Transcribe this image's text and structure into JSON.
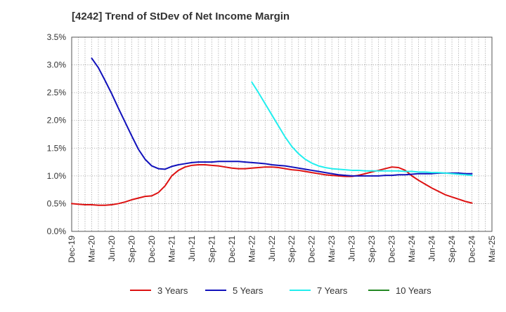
{
  "chart_data": {
    "type": "line",
    "title": "[4242]  Trend of StDev of Net Income Margin",
    "xlabel": "",
    "ylabel": "",
    "x_ticks": [
      "Dec-19",
      "Mar-20",
      "Jun-20",
      "Sep-20",
      "Dec-20",
      "Mar-21",
      "Jun-21",
      "Sep-21",
      "Dec-21",
      "Mar-22",
      "Jun-22",
      "Sep-22",
      "Dec-22",
      "Mar-23",
      "Jun-23",
      "Sep-23",
      "Dec-23",
      "Mar-24",
      "Jun-24",
      "Sep-24",
      "Dec-24",
      "Mar-25"
    ],
    "y_ticks": [
      "0.0%",
      "0.5%",
      "1.0%",
      "1.5%",
      "2.0%",
      "2.5%",
      "3.0%",
      "3.5%"
    ],
    "ylim": [
      0,
      3.5
    ],
    "y_unit": "%",
    "grid": true,
    "legend_position": "bottom",
    "series": [
      {
        "name": "3 Years",
        "color": "#dd1111",
        "x": [
          "Dec-19",
          "Jan-20",
          "Feb-20",
          "Mar-20",
          "Apr-20",
          "May-20",
          "Jun-20",
          "Jul-20",
          "Aug-20",
          "Sep-20",
          "Oct-20",
          "Nov-20",
          "Dec-20",
          "Jan-21",
          "Feb-21",
          "Mar-21",
          "Apr-21",
          "May-21",
          "Jun-21",
          "Jul-21",
          "Aug-21",
          "Sep-21",
          "Oct-21",
          "Nov-21",
          "Dec-21",
          "Jan-22",
          "Feb-22",
          "Mar-22",
          "Apr-22",
          "May-22",
          "Jun-22",
          "Jul-22",
          "Aug-22",
          "Sep-22",
          "Oct-22",
          "Nov-22",
          "Dec-22",
          "Jan-23",
          "Feb-23",
          "Mar-23",
          "Apr-23",
          "May-23",
          "Jun-23",
          "Jul-23",
          "Aug-23",
          "Sep-23",
          "Oct-23",
          "Nov-23",
          "Dec-23",
          "Jan-24",
          "Feb-24",
          "Mar-24",
          "Apr-24",
          "May-24",
          "Jun-24",
          "Jul-24",
          "Aug-24",
          "Sep-24",
          "Oct-24",
          "Nov-24",
          "Dec-24"
        ],
        "values": [
          0.5,
          0.49,
          0.48,
          0.48,
          0.47,
          0.47,
          0.48,
          0.5,
          0.53,
          0.57,
          0.6,
          0.63,
          0.64,
          0.7,
          0.82,
          1.0,
          1.1,
          1.16,
          1.19,
          1.2,
          1.2,
          1.19,
          1.18,
          1.16,
          1.14,
          1.13,
          1.13,
          1.14,
          1.15,
          1.16,
          1.16,
          1.15,
          1.13,
          1.11,
          1.1,
          1.08,
          1.06,
          1.04,
          1.02,
          1.01,
          1.0,
          0.99,
          0.99,
          1.01,
          1.04,
          1.07,
          1.1,
          1.13,
          1.16,
          1.15,
          1.1,
          1.0,
          0.92,
          0.85,
          0.78,
          0.72,
          0.66,
          0.62,
          0.58,
          0.54,
          0.51
        ]
      },
      {
        "name": "5 Years",
        "color": "#1111bb",
        "x": [
          "Mar-20",
          "Apr-20",
          "May-20",
          "Jun-20",
          "Jul-20",
          "Aug-20",
          "Sep-20",
          "Oct-20",
          "Nov-20",
          "Dec-20",
          "Jan-21",
          "Feb-21",
          "Mar-21",
          "Apr-21",
          "May-21",
          "Jun-21",
          "Jul-21",
          "Aug-21",
          "Sep-21",
          "Oct-21",
          "Nov-21",
          "Dec-21",
          "Jan-22",
          "Feb-22",
          "Mar-22",
          "Apr-22",
          "May-22",
          "Jun-22",
          "Jul-22",
          "Aug-22",
          "Sep-22",
          "Oct-22",
          "Nov-22",
          "Dec-22",
          "Jan-23",
          "Feb-23",
          "Mar-23",
          "Apr-23",
          "May-23",
          "Jun-23",
          "Jul-23",
          "Aug-23",
          "Sep-23",
          "Oct-23",
          "Nov-23",
          "Dec-23",
          "Jan-24",
          "Feb-24",
          "Mar-24",
          "Apr-24",
          "May-24",
          "Jun-24",
          "Jul-24",
          "Aug-24",
          "Sep-24",
          "Oct-24",
          "Nov-24",
          "Dec-24"
        ],
        "values": [
          3.12,
          2.95,
          2.72,
          2.48,
          2.22,
          1.97,
          1.72,
          1.48,
          1.3,
          1.18,
          1.13,
          1.12,
          1.17,
          1.2,
          1.22,
          1.24,
          1.25,
          1.25,
          1.25,
          1.26,
          1.26,
          1.26,
          1.26,
          1.25,
          1.24,
          1.23,
          1.22,
          1.2,
          1.19,
          1.18,
          1.16,
          1.14,
          1.12,
          1.1,
          1.08,
          1.06,
          1.04,
          1.02,
          1.01,
          1.0,
          1.0,
          1.0,
          1.0,
          1.0,
          1.01,
          1.01,
          1.02,
          1.02,
          1.03,
          1.04,
          1.04,
          1.04,
          1.05,
          1.05,
          1.05,
          1.05,
          1.04,
          1.04
        ]
      },
      {
        "name": "7 Years",
        "color": "#22eeee",
        "x": [
          "Mar-22",
          "Apr-22",
          "May-22",
          "Jun-22",
          "Jul-22",
          "Aug-22",
          "Sep-22",
          "Oct-22",
          "Nov-22",
          "Dec-22",
          "Jan-23",
          "Feb-23",
          "Mar-23",
          "Apr-23",
          "May-23",
          "Jun-23",
          "Jul-23",
          "Aug-23",
          "Sep-23",
          "Oct-23",
          "Nov-23",
          "Dec-23",
          "Jan-24",
          "Feb-24",
          "Mar-24",
          "Apr-24",
          "May-24",
          "Jun-24",
          "Jul-24",
          "Aug-24",
          "Sep-24",
          "Oct-24",
          "Nov-24",
          "Dec-24"
        ],
        "values": [
          2.69,
          2.5,
          2.3,
          2.1,
          1.9,
          1.7,
          1.53,
          1.4,
          1.3,
          1.23,
          1.18,
          1.15,
          1.13,
          1.12,
          1.11,
          1.1,
          1.1,
          1.09,
          1.09,
          1.09,
          1.09,
          1.09,
          1.09,
          1.08,
          1.08,
          1.07,
          1.07,
          1.06,
          1.06,
          1.05,
          1.04,
          1.03,
          1.02,
          1.01
        ]
      },
      {
        "name": "10 Years",
        "color": "#228822",
        "x": [],
        "values": []
      }
    ]
  }
}
